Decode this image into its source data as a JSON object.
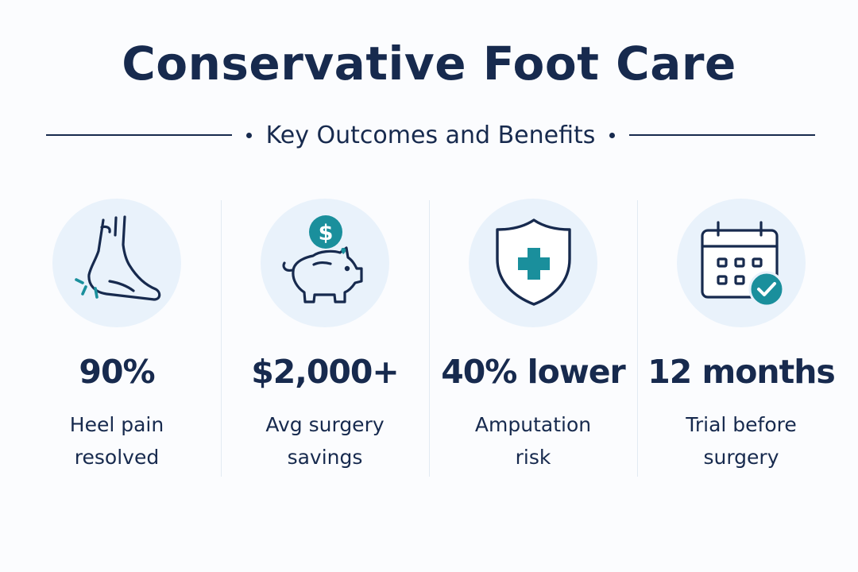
{
  "title": "Conservative Foot Care",
  "subtitle": "Key Outcomes and Benefits",
  "colors": {
    "navy": "#172a4e",
    "teal": "#1a8f9c",
    "icon_circle": "#e9f2fb",
    "background": "#fbfcfe"
  },
  "stats": [
    {
      "icon": "foot-icon",
      "value": "90%",
      "label_line1": "Heel pain",
      "label_line2": "resolved"
    },
    {
      "icon": "piggy-bank-icon",
      "value": "$2,000+",
      "label_line1": "Avg surgery",
      "label_line2": "savings"
    },
    {
      "icon": "shield-cross-icon",
      "value": "40% lower",
      "label_line1": "Amputation",
      "label_line2": "risk"
    },
    {
      "icon": "calendar-check-icon",
      "value": "12 months",
      "label_line1": "Trial before",
      "label_line2": "surgery"
    }
  ]
}
